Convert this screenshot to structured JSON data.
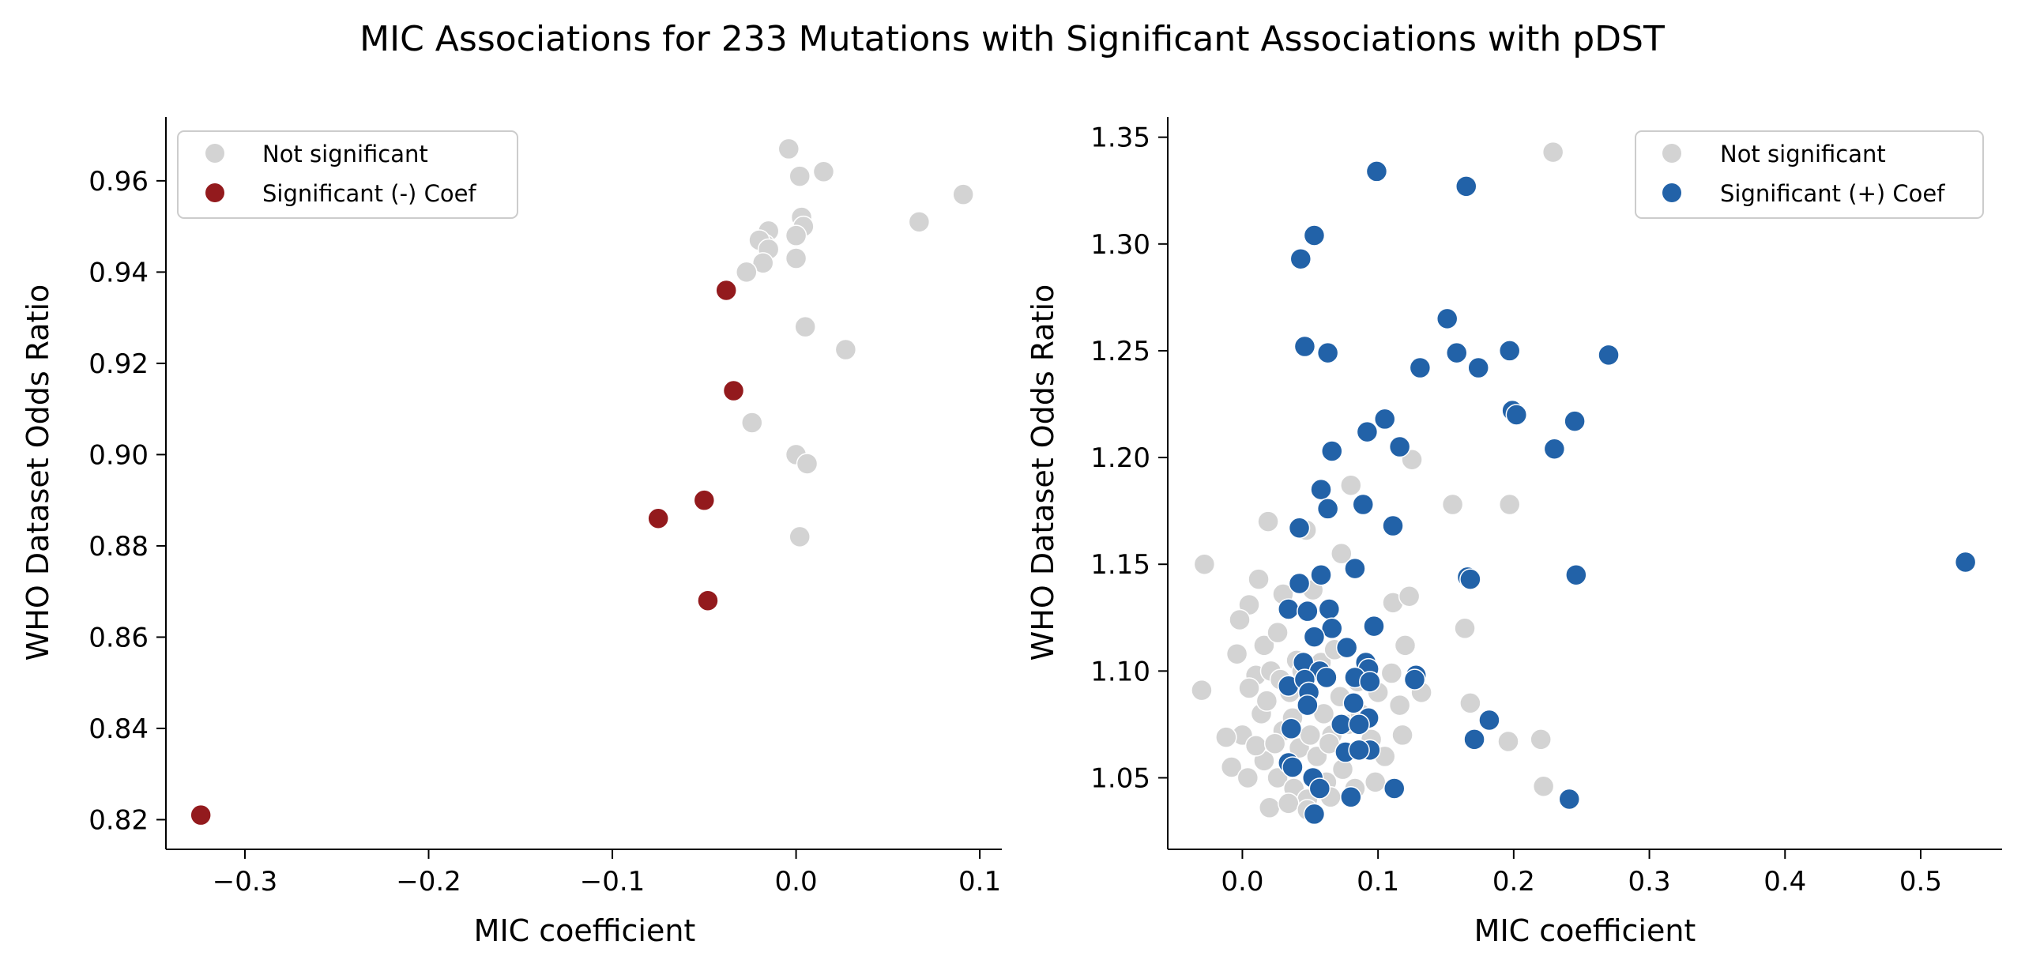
{
  "figure": {
    "title": "MIC Associations for 233 Mutations with Significant Associations with pDST"
  },
  "colors": {
    "not_significant": "#d3d3d3",
    "significant_negative": "#931a1d",
    "significant_positive": "#2262a8"
  },
  "chart_data": [
    {
      "type": "scatter",
      "title": "",
      "xlabel": "MIC coefficient",
      "ylabel": "WHO Dataset Odds Ratio",
      "xlim": [
        -0.343,
        0.112
      ],
      "ylim": [
        0.8135,
        0.974
      ],
      "xticks": [
        -0.3,
        -0.2,
        -0.1,
        0.0,
        0.1
      ],
      "xtick_labels": [
        "−0.3",
        "−0.2",
        "−0.1",
        "0.0",
        "0.1"
      ],
      "yticks": [
        0.82,
        0.84,
        0.86,
        0.88,
        0.9,
        0.92,
        0.94,
        0.96
      ],
      "ytick_labels": [
        "0.82",
        "0.84",
        "0.86",
        "0.88",
        "0.90",
        "0.92",
        "0.94",
        "0.96"
      ],
      "legend": {
        "position": "upper left",
        "entries": [
          "Not significant",
          "Significant (-) Coef"
        ]
      },
      "grid": false,
      "series": [
        {
          "name": "Not significant",
          "color": "#d3d3d3",
          "points": [
            [
              -0.004,
              0.967
            ],
            [
              0.015,
              0.962
            ],
            [
              0.002,
              0.961
            ],
            [
              0.091,
              0.957
            ],
            [
              0.003,
              0.952
            ],
            [
              0.067,
              0.951
            ],
            [
              -0.015,
              0.949
            ],
            [
              0.004,
              0.95
            ],
            [
              -0.017,
              0.946
            ],
            [
              0.0,
              0.948
            ],
            [
              -0.02,
              0.947
            ],
            [
              -0.015,
              0.945
            ],
            [
              0.0,
              0.943
            ],
            [
              -0.018,
              0.942
            ],
            [
              -0.027,
              0.94
            ],
            [
              0.005,
              0.928
            ],
            [
              0.027,
              0.923
            ],
            [
              -0.024,
              0.907
            ],
            [
              0.0,
              0.9
            ],
            [
              0.006,
              0.898
            ],
            [
              0.002,
              0.882
            ]
          ]
        },
        {
          "name": "Significant (-) Coef",
          "color": "#931a1d",
          "points": [
            [
              -0.038,
              0.936
            ],
            [
              -0.034,
              0.914
            ],
            [
              -0.05,
              0.89
            ],
            [
              -0.075,
              0.886
            ],
            [
              -0.048,
              0.868
            ],
            [
              -0.324,
              0.821
            ]
          ]
        }
      ]
    },
    {
      "type": "scatter",
      "title": "",
      "xlabel": "MIC coefficient",
      "ylabel": "WHO Dataset Odds Ratio",
      "xlim": [
        -0.055,
        0.56
      ],
      "ylim": [
        1.0165,
        1.3595
      ],
      "xticks": [
        0.0,
        0.1,
        0.2,
        0.3,
        0.4,
        0.5
      ],
      "xtick_labels": [
        "0.0",
        "0.1",
        "0.2",
        "0.3",
        "0.4",
        "0.5"
      ],
      "yticks": [
        1.05,
        1.1,
        1.15,
        1.2,
        1.25,
        1.3,
        1.35
      ],
      "ytick_labels": [
        "1.05",
        "1.10",
        "1.15",
        "1.20",
        "1.25",
        "1.30",
        "1.35"
      ],
      "legend": {
        "position": "upper right",
        "entries": [
          "Not significant",
          "Significant (+) Coef"
        ]
      },
      "grid": false,
      "series": [
        {
          "name": "Not significant",
          "color": "#d3d3d3",
          "points": [
            [
              0.229,
              1.343
            ],
            [
              -0.028,
              1.15
            ],
            [
              0.019,
              1.17
            ],
            [
              0.047,
              1.166
            ],
            [
              0.073,
              1.155
            ],
            [
              0.012,
              1.143
            ],
            [
              0.005,
              1.131
            ],
            [
              -0.002,
              1.124
            ],
            [
              0.03,
              1.136
            ],
            [
              0.052,
              1.138
            ],
            [
              0.111,
              1.132
            ],
            [
              0.123,
              1.135
            ],
            [
              0.164,
              1.12
            ],
            [
              0.155,
              1.178
            ],
            [
              0.197,
              1.178
            ],
            [
              0.125,
              1.199
            ],
            [
              0.08,
              1.187
            ],
            [
              0.016,
              1.112
            ],
            [
              0.026,
              1.118
            ],
            [
              0.04,
              1.105
            ],
            [
              -0.004,
              1.108
            ],
            [
              -0.03,
              1.091
            ],
            [
              0.01,
              1.098
            ],
            [
              0.021,
              1.1
            ],
            [
              0.035,
              1.09
            ],
            [
              0.048,
              1.085
            ],
            [
              0.06,
              1.08
            ],
            [
              0.072,
              1.088
            ],
            [
              0.085,
              1.095
            ],
            [
              0.1,
              1.09
            ],
            [
              0.12,
              1.112
            ],
            [
              0.132,
              1.09
            ],
            [
              0.116,
              1.084
            ],
            [
              0.09,
              1.064
            ],
            [
              0.0,
              1.07
            ],
            [
              0.014,
              1.08
            ],
            [
              0.03,
              1.072
            ],
            [
              0.042,
              1.064
            ],
            [
              0.055,
              1.06
            ],
            [
              0.066,
              1.07
            ],
            [
              0.078,
              1.075
            ],
            [
              0.095,
              1.068
            ],
            [
              0.105,
              1.06
            ],
            [
              0.118,
              1.07
            ],
            [
              -0.012,
              1.069
            ],
            [
              -0.008,
              1.055
            ],
            [
              0.004,
              1.05
            ],
            [
              0.016,
              1.058
            ],
            [
              0.026,
              1.05
            ],
            [
              0.038,
              1.045
            ],
            [
              0.048,
              1.04
            ],
            [
              0.062,
              1.048
            ],
            [
              0.074,
              1.054
            ],
            [
              0.083,
              1.045
            ],
            [
              0.098,
              1.048
            ],
            [
              0.02,
              1.036
            ],
            [
              0.034,
              1.038
            ],
            [
              0.048,
              1.035
            ],
            [
              0.065,
              1.041
            ],
            [
              0.168,
              1.085
            ],
            [
              0.196,
              1.067
            ],
            [
              0.22,
              1.068
            ],
            [
              0.222,
              1.046
            ],
            [
              0.005,
              1.092
            ],
            [
              0.018,
              1.086
            ],
            [
              0.028,
              1.096
            ],
            [
              0.044,
              1.1
            ],
            [
              0.058,
              1.104
            ],
            [
              0.068,
              1.11
            ],
            [
              0.01,
              1.065
            ],
            [
              0.024,
              1.066
            ],
            [
              0.037,
              1.078
            ],
            [
              0.05,
              1.07
            ],
            [
              0.064,
              1.066
            ],
            [
              0.087,
              1.08
            ],
            [
              0.11,
              1.099
            ]
          ]
        },
        {
          "name": "Significant (+) Coef",
          "color": "#2262a8",
          "points": [
            [
              0.099,
              1.334
            ],
            [
              0.165,
              1.327
            ],
            [
              0.053,
              1.304
            ],
            [
              0.043,
              1.293
            ],
            [
              0.151,
              1.265
            ],
            [
              0.046,
              1.252
            ],
            [
              0.063,
              1.249
            ],
            [
              0.158,
              1.249
            ],
            [
              0.197,
              1.25
            ],
            [
              0.27,
              1.248
            ],
            [
              0.131,
              1.242
            ],
            [
              0.174,
              1.242
            ],
            [
              0.199,
              1.222
            ],
            [
              0.202,
              1.22
            ],
            [
              0.245,
              1.217
            ],
            [
              0.105,
              1.218
            ],
            [
              0.092,
              1.212
            ],
            [
              0.116,
              1.205
            ],
            [
              0.23,
              1.204
            ],
            [
              0.066,
              1.203
            ],
            [
              0.058,
              1.185
            ],
            [
              0.089,
              1.178
            ],
            [
              0.063,
              1.176
            ],
            [
              0.042,
              1.167
            ],
            [
              0.111,
              1.168
            ],
            [
              0.533,
              1.151
            ],
            [
              0.083,
              1.148
            ],
            [
              0.058,
              1.145
            ],
            [
              0.166,
              1.144
            ],
            [
              0.168,
              1.143
            ],
            [
              0.246,
              1.145
            ],
            [
              0.042,
              1.141
            ],
            [
              0.034,
              1.129
            ],
            [
              0.048,
              1.128
            ],
            [
              0.064,
              1.129
            ],
            [
              0.066,
              1.12
            ],
            [
              0.097,
              1.121
            ],
            [
              0.053,
              1.116
            ],
            [
              0.077,
              1.111
            ],
            [
              0.045,
              1.104
            ],
            [
              0.091,
              1.104
            ],
            [
              0.057,
              1.1
            ],
            [
              0.093,
              1.101
            ],
            [
              0.034,
              1.093
            ],
            [
              0.062,
              1.097
            ],
            [
              0.083,
              1.097
            ],
            [
              0.094,
              1.095
            ],
            [
              0.128,
              1.098
            ],
            [
              0.127,
              1.096
            ],
            [
              0.046,
              1.096
            ],
            [
              0.049,
              1.09
            ],
            [
              0.048,
              1.084
            ],
            [
              0.082,
              1.085
            ],
            [
              0.093,
              1.078
            ],
            [
              0.073,
              1.075
            ],
            [
              0.086,
              1.075
            ],
            [
              0.182,
              1.077
            ],
            [
              0.036,
              1.073
            ],
            [
              0.171,
              1.068
            ],
            [
              0.094,
              1.063
            ],
            [
              0.076,
              1.062
            ],
            [
              0.086,
              1.063
            ],
            [
              0.034,
              1.057
            ],
            [
              0.037,
              1.055
            ],
            [
              0.052,
              1.05
            ],
            [
              0.057,
              1.045
            ],
            [
              0.08,
              1.041
            ],
            [
              0.112,
              1.045
            ],
            [
              0.241,
              1.04
            ],
            [
              0.053,
              1.033
            ]
          ]
        }
      ]
    }
  ]
}
